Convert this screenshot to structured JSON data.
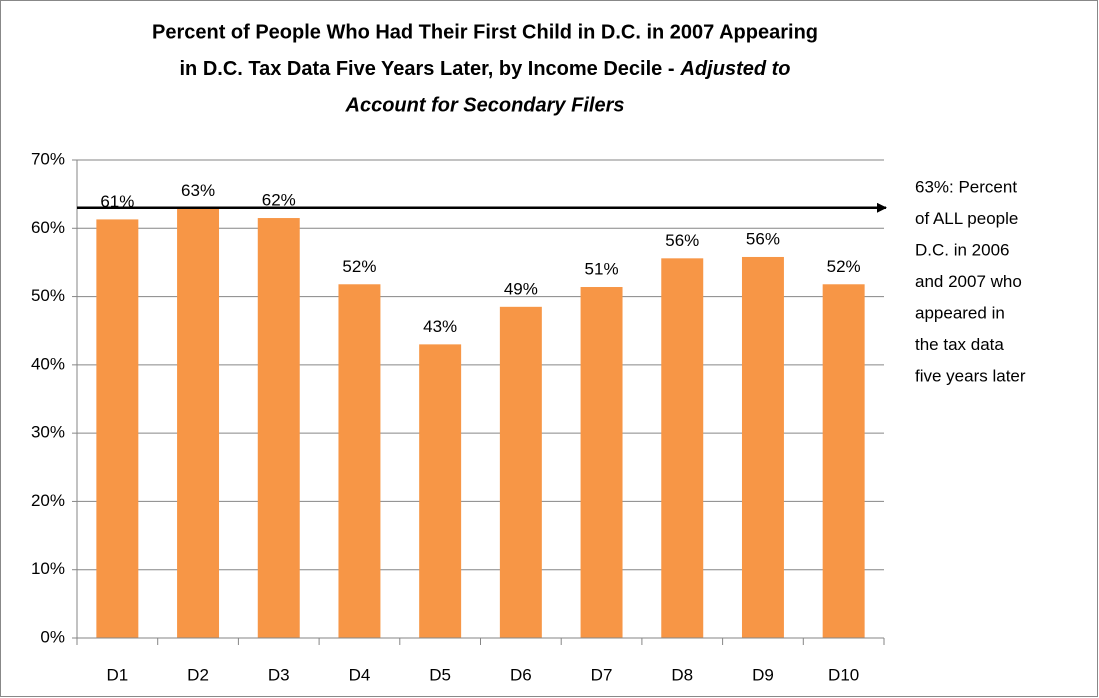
{
  "chart_data": {
    "type": "bar",
    "title": {
      "line1": "Percent of People Who Had Their First Child in D.C. in 2007 Appearing",
      "line2": "in D.C. Tax Data Five Years Later, by Income Decile -",
      "line2_emphasis": "Adjusted to",
      "line3_emphasis": "Account for Secondary Filers"
    },
    "categories": [
      "D1",
      "D2",
      "D3",
      "D4",
      "D5",
      "D6",
      "D7",
      "D8",
      "D9",
      "D10"
    ],
    "values": [
      61.3,
      62.9,
      61.5,
      51.8,
      43.0,
      48.5,
      51.4,
      55.6,
      55.8,
      51.8
    ],
    "value_labels": [
      "61%",
      "63%",
      "62%",
      "52%",
      "43%",
      "49%",
      "51%",
      "56%",
      "56%",
      "52%"
    ],
    "color": "#f79646",
    "ylim": [
      0,
      70
    ],
    "yticks": [
      {
        "value": 0,
        "label": "0%"
      },
      {
        "value": 10,
        "label": "10%"
      },
      {
        "value": 20,
        "label": "20%"
      },
      {
        "value": 30,
        "label": "30%"
      },
      {
        "value": 40,
        "label": "40%"
      },
      {
        "value": 50,
        "label": "50%"
      },
      {
        "value": 60,
        "label": "60%"
      },
      {
        "value": 70,
        "label": "70%"
      }
    ],
    "grid": true,
    "annotation": {
      "value": 63,
      "lines": [
        "63%: Percent",
        "of ALL people",
        "D.C. in 2006",
        "and 2007 who",
        "appeared in",
        "the tax data",
        "five years later"
      ]
    }
  }
}
